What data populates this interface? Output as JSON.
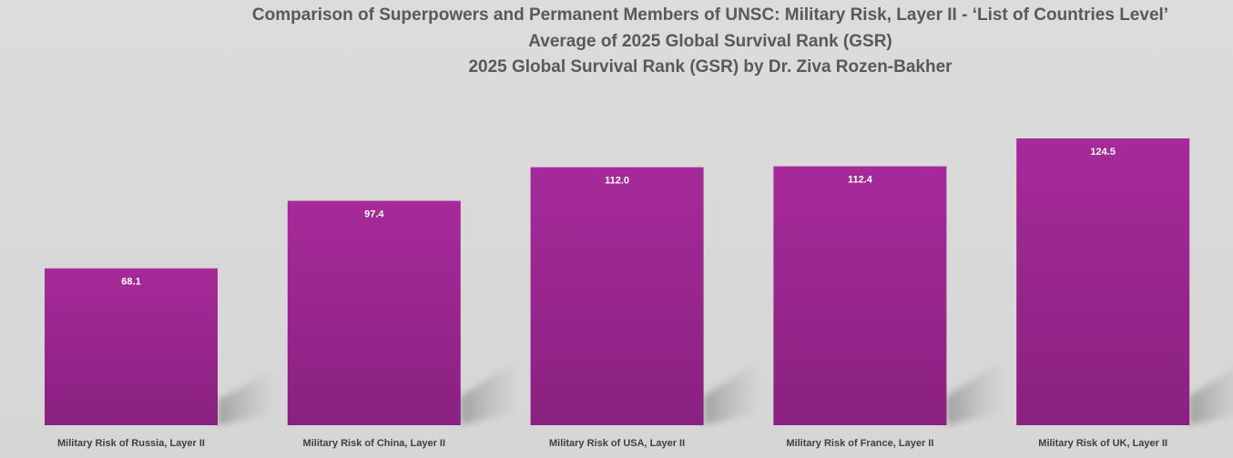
{
  "chart_data": {
    "type": "bar",
    "title": [
      "Comparison of Superpowers and Permanent Members of UNSC: Military Risk, Layer II - ‘List of Countries Level’",
      "Average of 2025 Global Survival Rank (GSR)",
      "2025 Global Survival Rank (GSR) by Dr. Ziva Rozen-Bakher"
    ],
    "categories": [
      "Military Risk of Russia, Layer II",
      "Military Risk of China, Layer II",
      "Military Risk of USA, Layer II",
      "Military Risk of France, Layer II",
      "Military Risk of UK, Layer II"
    ],
    "values": [
      68.1,
      97.4,
      112.0,
      112.4,
      124.5
    ],
    "value_labels": [
      "68.1",
      "97.4",
      "112.0",
      "112.4",
      "124.5"
    ],
    "xlabel": "",
    "ylabel": "",
    "ylim": [
      0,
      135
    ],
    "grid": false,
    "legend": "none",
    "colors": {
      "bar_top": "#a62a9a",
      "bar_bottom": "#8a2180",
      "title": "#595959",
      "category_label": "#404040",
      "value_label": "#ffffff",
      "background": "#d9d9d9"
    }
  }
}
